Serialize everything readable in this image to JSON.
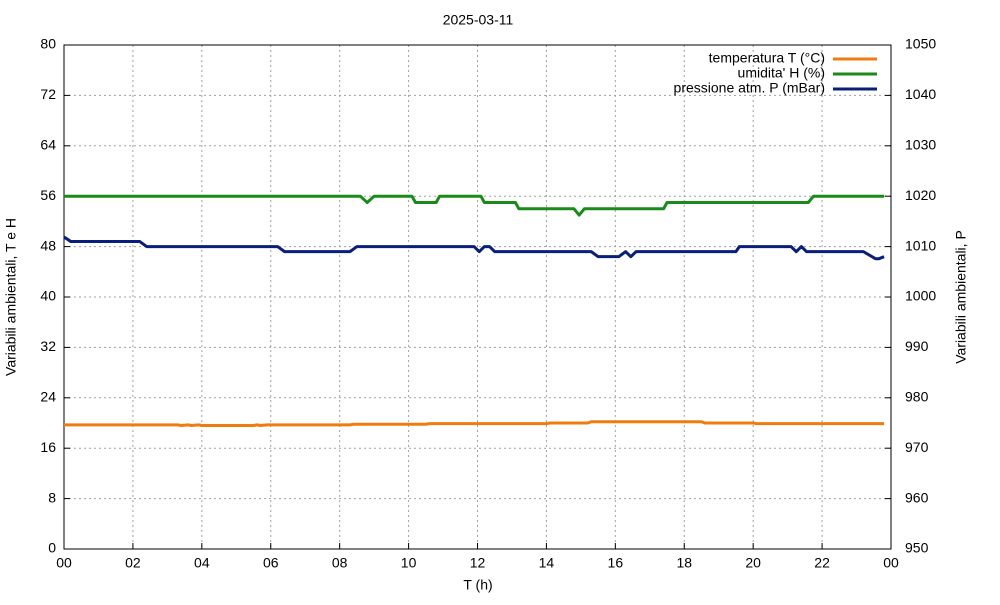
{
  "chart_data": {
    "type": "line",
    "title": "2025-03-11",
    "xlabel": "T (h)",
    "ylabel": "Variabili ambientali, T e H",
    "y2label": "Variabili ambientali, P",
    "xlim": [
      0,
      24
    ],
    "xticks": [
      {
        "value": 0,
        "label": "00"
      },
      {
        "value": 2,
        "label": "02"
      },
      {
        "value": 4,
        "label": "04"
      },
      {
        "value": 6,
        "label": "06"
      },
      {
        "value": 8,
        "label": "08"
      },
      10,
      12,
      14,
      16,
      18,
      20,
      22,
      {
        "value": 24,
        "label": "00"
      }
    ],
    "ylim": [
      0,
      80
    ],
    "yticks": [
      0,
      8,
      16,
      24,
      32,
      40,
      48,
      56,
      64,
      72,
      80
    ],
    "y2lim": [
      950,
      1050
    ],
    "y2ticks": [
      950,
      960,
      970,
      980,
      990,
      1000,
      1010,
      1020,
      1030,
      1040,
      1050
    ],
    "grid": true,
    "legend": "top-right",
    "series": [
      {
        "name": "temperatura T (°C)",
        "color": "#f07c10",
        "x": [
          0,
          3.3,
          3.4,
          3.6,
          3.7,
          3.9,
          4.0,
          5.5,
          5.6,
          5.7,
          5.9,
          8.3,
          8.4,
          10.5,
          10.6,
          14,
          14.1,
          15.2,
          15.3,
          18.5,
          18.6,
          20,
          20.1,
          23.8
        ],
        "values": [
          19.7,
          19.7,
          19.6,
          19.7,
          19.6,
          19.7,
          19.6,
          19.6,
          19.7,
          19.6,
          19.7,
          19.7,
          19.8,
          19.8,
          19.9,
          19.9,
          20.0,
          20.0,
          20.2,
          20.2,
          20.0,
          20.0,
          19.9,
          19.9
        ]
      },
      {
        "name": "umidita' H (%)",
        "color": "#1a8a1a",
        "x": [
          0,
          8.6,
          8.8,
          9.0,
          10.1,
          10.2,
          10.8,
          10.9,
          12.1,
          12.2,
          13.1,
          13.2,
          14.8,
          14.95,
          15.1,
          17.4,
          17.5,
          21.6,
          21.75,
          23.8
        ],
        "values": [
          56,
          56,
          55,
          56,
          56,
          55,
          55,
          56,
          56,
          55,
          55,
          54,
          54,
          53,
          54,
          54,
          55,
          55,
          56,
          56
        ]
      },
      {
        "name": "pressione atm. P (mBar)",
        "color": "#0a1f7a",
        "axis": "y2",
        "x": [
          0,
          0.2,
          2.2,
          2.4,
          6.2,
          6.4,
          8.3,
          8.5,
          11.9,
          12.05,
          12.2,
          12.35,
          12.5,
          15.3,
          15.5,
          16.1,
          16.3,
          16.45,
          16.6,
          19.5,
          19.6,
          21.1,
          21.25,
          21.4,
          21.55,
          23.2,
          23.55,
          23.65,
          23.8
        ],
        "values": [
          1011.9,
          1011,
          1011,
          1010,
          1010,
          1009,
          1009,
          1010,
          1010,
          1009,
          1010,
          1010,
          1009,
          1009,
          1008,
          1008,
          1009,
          1008,
          1009,
          1009,
          1010,
          1010,
          1009,
          1010,
          1009,
          1009,
          1007.6,
          1007.6,
          1008
        ]
      }
    ]
  }
}
